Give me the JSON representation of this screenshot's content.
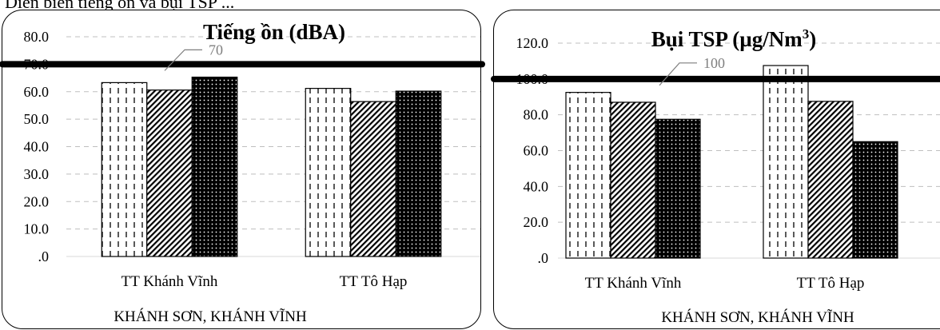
{
  "caption": "Diễn biến tiếng ồn và bụi TSP ...",
  "charts": [
    {
      "title": "Tiếng ồn (dBA)",
      "title_superscript": "",
      "type": "bar",
      "yticks": [
        "80.0",
        "70.0",
        "60.0",
        "50.0",
        "40.0",
        "30.0",
        "20.0",
        "10.0",
        ".0"
      ],
      "group_label": "KHÁNH SƠN, KHÁNH VĨNH",
      "reference_label": "70"
    },
    {
      "title": "Bụi TSP (µg/Nm",
      "title_superscript": "3",
      "title_suffix": ")",
      "type": "bar",
      "yticks": [
        "120.0",
        "100.0",
        "80.0",
        "60.0",
        "40.0",
        "20.0",
        ".0"
      ],
      "group_label": "KHÁNH SƠN, KHÁNH VĨNH",
      "reference_label": "100"
    }
  ],
  "chart_data": [
    {
      "type": "bar",
      "title": "Tiếng ồn (dBA)",
      "categories": [
        "TT Khánh Vĩnh",
        "TT Tô Hạp"
      ],
      "series": [
        {
          "values": [
            63.3,
            61.2
          ]
        },
        {
          "values": [
            60.6,
            56.4
          ]
        },
        {
          "values": [
            65.3,
            60.2
          ]
        }
      ],
      "ylim": [
        0,
        80
      ],
      "ytick_step": 10,
      "reference_line": 70,
      "xlabel": "KHÁNH SƠN, KHÁNH VĨNH",
      "ylabel": "",
      "grid": true
    },
    {
      "type": "bar",
      "title": "Bụi TSP (µg/Nm3)",
      "categories": [
        "TT Khánh Vĩnh",
        "TT Tô Hạp"
      ],
      "series": [
        {
          "values": [
            92.5,
            107.5
          ]
        },
        {
          "values": [
            87.0,
            87.5
          ]
        },
        {
          "values": [
            77.5,
            65.0
          ]
        }
      ],
      "ylim": [
        0,
        120
      ],
      "ytick_step": 20,
      "reference_line": 100,
      "xlabel": "KHÁNH SƠN, KHÁNH VĨNH",
      "ylabel": "",
      "grid": true
    }
  ]
}
